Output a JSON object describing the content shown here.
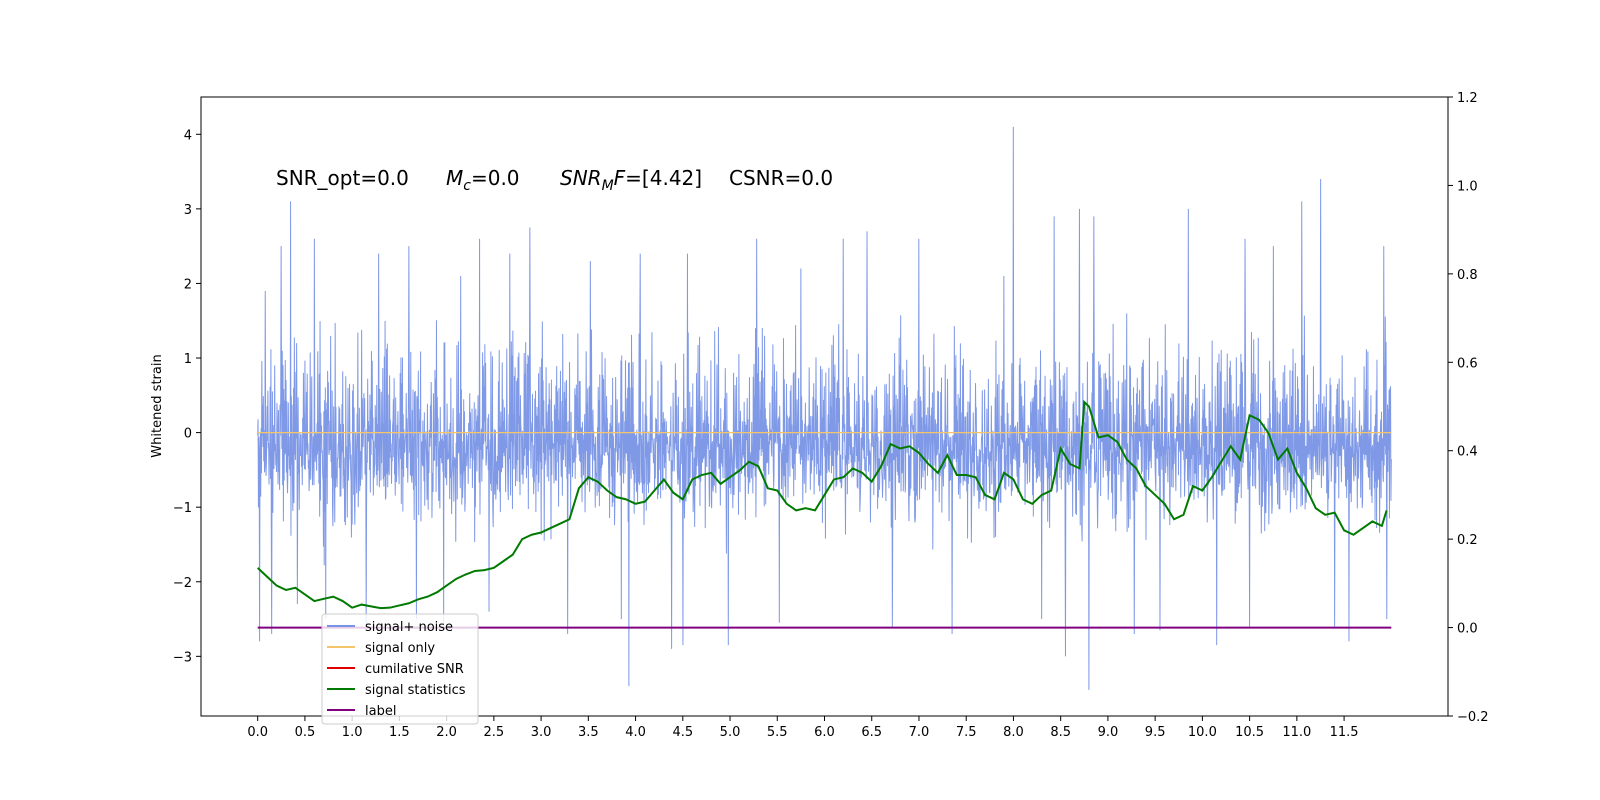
{
  "chart_data": {
    "type": "line",
    "ylabel": "Whitened strain",
    "xlim": [
      -0.6,
      12.6
    ],
    "ylim_left": [
      -3.8,
      4.5
    ],
    "ylim_right": [
      -0.2,
      1.2
    ],
    "x_ticks": [
      0.0,
      0.5,
      1.0,
      1.5,
      2.0,
      2.5,
      3.0,
      3.5,
      4.0,
      4.5,
      5.0,
      5.5,
      6.0,
      6.5,
      7.0,
      7.5,
      8.0,
      8.5,
      9.0,
      9.5,
      10.0,
      10.5,
      11.0,
      11.5
    ],
    "x_tick_labels": [
      "0.0",
      "0.5",
      "1.0",
      "1.5",
      "2.0",
      "2.5",
      "3.0",
      "3.5",
      "4.0",
      "4.5",
      "5.0",
      "5.5",
      "6.0",
      "6.5",
      "7.0",
      "7.5",
      "8.0",
      "8.5",
      "9.0",
      "9.5",
      "10.0",
      "10.5",
      "11.0",
      "11.5"
    ],
    "y_ticks_left": [
      4,
      3,
      2,
      1,
      0,
      -1,
      -2,
      -3
    ],
    "y_tick_labels_left": [
      "4",
      "3",
      "2",
      "1",
      "0",
      "−1",
      "−2",
      "−3"
    ],
    "y_ticks_right": [
      1.2,
      1.0,
      0.8,
      0.6,
      0.4,
      0.2,
      0.0,
      -0.2
    ],
    "y_tick_labels_right": [
      "1.2",
      "1.0",
      "0.8",
      "0.6",
      "0.4",
      "0.2",
      "0.0",
      "−0.2"
    ],
    "annotations": {
      "snr_opt": "SNR_opt=0.0",
      "mc_label": "M",
      "mc_sub": "c",
      "mc_value": "=0.0",
      "snr_mf_label": "SNR",
      "snr_mf_sub": "M",
      "snr_mf_f": "F",
      "snr_mf_value": "=[4.42]",
      "csnr": "CSNR=0.0"
    },
    "noise_series": {
      "name": "signal+ noise",
      "color": "#7893e6",
      "x_range": [
        0.0,
        12.0
      ],
      "core_range": [
        -1.6,
        1.9
      ],
      "spikes": [
        {
          "x": 0.02,
          "y": -2.8
        },
        {
          "x": 0.08,
          "y": 1.9
        },
        {
          "x": 0.15,
          "y": -2.7
        },
        {
          "x": 0.25,
          "y": 2.5
        },
        {
          "x": 0.35,
          "y": 3.1
        },
        {
          "x": 0.42,
          "y": -2.3
        },
        {
          "x": 0.6,
          "y": 2.6
        },
        {
          "x": 0.72,
          "y": -2.5
        },
        {
          "x": 1.15,
          "y": -2.6
        },
        {
          "x": 1.28,
          "y": 2.4
        },
        {
          "x": 1.6,
          "y": 2.5
        },
        {
          "x": 1.68,
          "y": -2.5
        },
        {
          "x": 1.97,
          "y": -2.6
        },
        {
          "x": 2.15,
          "y": 2.1
        },
        {
          "x": 2.35,
          "y": 2.6
        },
        {
          "x": 2.45,
          "y": -2.4
        },
        {
          "x": 2.67,
          "y": 2.4
        },
        {
          "x": 2.88,
          "y": 2.75
        },
        {
          "x": 3.28,
          "y": -2.7
        },
        {
          "x": 3.52,
          "y": 2.3
        },
        {
          "x": 3.85,
          "y": -2.5
        },
        {
          "x": 3.93,
          "y": -3.4
        },
        {
          "x": 4.05,
          "y": 2.4
        },
        {
          "x": 4.38,
          "y": -2.9
        },
        {
          "x": 4.5,
          "y": -2.85
        },
        {
          "x": 4.55,
          "y": 2.4
        },
        {
          "x": 4.98,
          "y": -2.85
        },
        {
          "x": 5.28,
          "y": 2.6
        },
        {
          "x": 5.52,
          "y": -2.55
        },
        {
          "x": 5.75,
          "y": 2.2
        },
        {
          "x": 6.2,
          "y": 2.6
        },
        {
          "x": 6.45,
          "y": 2.7
        },
        {
          "x": 6.72,
          "y": -2.6
        },
        {
          "x": 7.0,
          "y": 2.6
        },
        {
          "x": 7.35,
          "y": -2.7
        },
        {
          "x": 7.9,
          "y": 2.1
        },
        {
          "x": 8.0,
          "y": 4.1
        },
        {
          "x": 8.3,
          "y": -2.5
        },
        {
          "x": 8.43,
          "y": 2.9
        },
        {
          "x": 8.55,
          "y": -3.0
        },
        {
          "x": 8.7,
          "y": 3.0
        },
        {
          "x": 8.8,
          "y": -3.45
        },
        {
          "x": 8.85,
          "y": 2.9
        },
        {
          "x": 9.28,
          "y": -2.7
        },
        {
          "x": 9.55,
          "y": -2.65
        },
        {
          "x": 9.85,
          "y": 3.0
        },
        {
          "x": 10.15,
          "y": -2.85
        },
        {
          "x": 10.45,
          "y": 2.6
        },
        {
          "x": 10.5,
          "y": -2.6
        },
        {
          "x": 10.75,
          "y": 2.5
        },
        {
          "x": 11.05,
          "y": 3.1
        },
        {
          "x": 11.25,
          "y": 3.4
        },
        {
          "x": 11.4,
          "y": -2.6
        },
        {
          "x": 11.55,
          "y": 3.2
        },
        {
          "x": 11.55,
          "y": -2.8
        },
        {
          "x": 11.92,
          "y": 2.5
        },
        {
          "x": 11.95,
          "y": -2.5
        }
      ]
    },
    "series": [
      {
        "name": "signal only",
        "color": "#f5c56b",
        "axis": "left",
        "x": [
          0.0,
          12.0
        ],
        "y": [
          0.0,
          0.0
        ]
      },
      {
        "name": "cumilative SNR",
        "color": "#e00000",
        "axis": "right",
        "x": [],
        "y": []
      },
      {
        "name": "signal statistics",
        "color": "#007a00",
        "axis": "right",
        "x": [
          0.0,
          0.1,
          0.2,
          0.3,
          0.4,
          0.5,
          0.6,
          0.7,
          0.8,
          0.9,
          1.0,
          1.1,
          1.2,
          1.3,
          1.4,
          1.5,
          1.6,
          1.7,
          1.8,
          1.9,
          2.0,
          2.1,
          2.2,
          2.3,
          2.4,
          2.5,
          2.6,
          2.7,
          2.8,
          2.9,
          3.0,
          3.1,
          3.2,
          3.3,
          3.4,
          3.5,
          3.6,
          3.7,
          3.8,
          3.9,
          4.0,
          4.1,
          4.2,
          4.3,
          4.4,
          4.5,
          4.6,
          4.7,
          4.8,
          4.9,
          5.0,
          5.1,
          5.2,
          5.3,
          5.4,
          5.5,
          5.6,
          5.7,
          5.8,
          5.9,
          6.0,
          6.1,
          6.2,
          6.3,
          6.4,
          6.5,
          6.6,
          6.7,
          6.8,
          6.9,
          7.0,
          7.1,
          7.2,
          7.3,
          7.4,
          7.5,
          7.6,
          7.7,
          7.8,
          7.9,
          8.0,
          8.1,
          8.2,
          8.3,
          8.4,
          8.5,
          8.6,
          8.7,
          8.75,
          8.8,
          8.9,
          9.0,
          9.1,
          9.2,
          9.3,
          9.4,
          9.5,
          9.6,
          9.7,
          9.8,
          9.9,
          10.0,
          10.1,
          10.2,
          10.3,
          10.4,
          10.5,
          10.6,
          10.7,
          10.8,
          10.9,
          11.0,
          11.1,
          11.2,
          11.3,
          11.4,
          11.5,
          11.6,
          11.7,
          11.8,
          11.9,
          11.95
        ],
        "y": [
          0.135,
          0.115,
          0.095,
          0.085,
          0.09,
          0.075,
          0.06,
          0.065,
          0.07,
          0.06,
          0.045,
          0.052,
          0.048,
          0.044,
          0.045,
          0.05,
          0.055,
          0.064,
          0.07,
          0.08,
          0.095,
          0.11,
          0.12,
          0.128,
          0.13,
          0.135,
          0.15,
          0.165,
          0.2,
          0.21,
          0.215,
          0.225,
          0.235,
          0.245,
          0.315,
          0.34,
          0.33,
          0.31,
          0.295,
          0.29,
          0.28,
          0.285,
          0.31,
          0.335,
          0.305,
          0.29,
          0.335,
          0.345,
          0.35,
          0.325,
          0.34,
          0.355,
          0.375,
          0.365,
          0.315,
          0.31,
          0.28,
          0.265,
          0.27,
          0.265,
          0.3,
          0.335,
          0.34,
          0.36,
          0.35,
          0.33,
          0.365,
          0.415,
          0.405,
          0.41,
          0.395,
          0.37,
          0.35,
          0.39,
          0.345,
          0.345,
          0.34,
          0.3,
          0.29,
          0.35,
          0.335,
          0.29,
          0.28,
          0.3,
          0.31,
          0.405,
          0.37,
          0.36,
          0.51,
          0.5,
          0.43,
          0.435,
          0.42,
          0.38,
          0.36,
          0.32,
          0.3,
          0.28,
          0.245,
          0.255,
          0.32,
          0.31,
          0.34,
          0.375,
          0.41,
          0.38,
          0.48,
          0.47,
          0.44,
          0.38,
          0.405,
          0.35,
          0.315,
          0.27,
          0.255,
          0.26,
          0.22,
          0.21,
          0.225,
          0.24,
          0.23,
          0.265
        ]
      },
      {
        "name": "label",
        "color": "#800080",
        "axis": "right",
        "x": [
          0.0,
          12.0
        ],
        "y": [
          0.0,
          0.0
        ]
      }
    ],
    "legend": {
      "placement": "lower-left",
      "entries": [
        {
          "label": "signal+ noise",
          "color": "#7893e6"
        },
        {
          "label": "signal only",
          "color": "#f5c56b"
        },
        {
          "label": "cumilative SNR",
          "color": "#e00000"
        },
        {
          "label": "signal statistics",
          "color": "#007a00"
        },
        {
          "label": "label",
          "color": "#800080"
        }
      ]
    },
    "grid": false
  }
}
